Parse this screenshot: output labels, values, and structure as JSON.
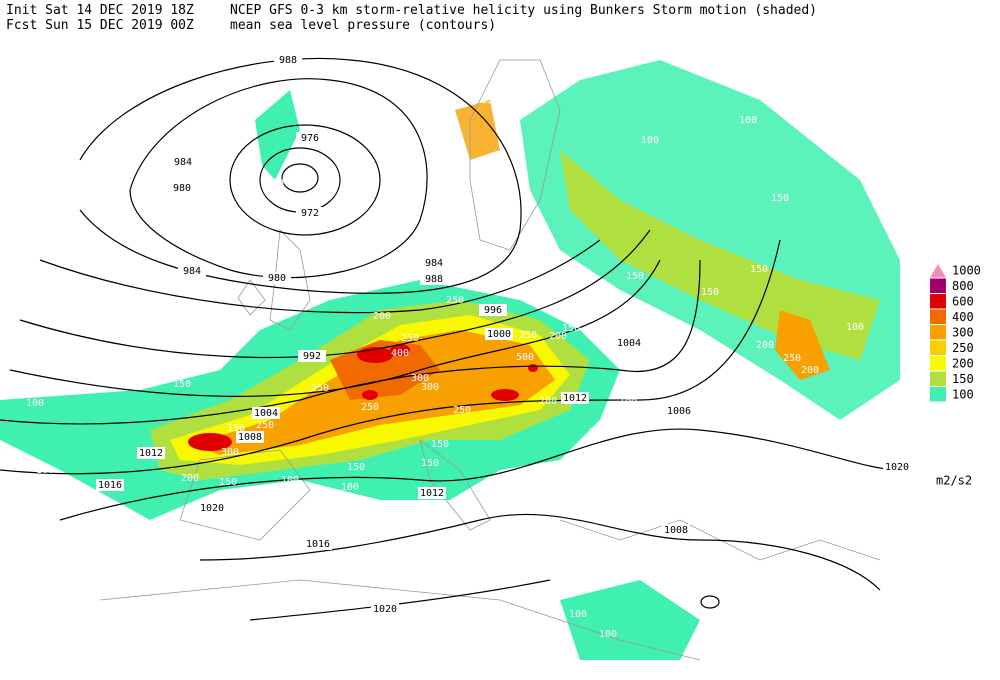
{
  "header": {
    "init": "Init  Sat 14 DEC 2019 18Z",
    "fcst": "Fcst Sun 15 DEC 2019 00Z",
    "title": "NCEP GFS 0-3 km storm-relative helicity using Bunkers Storm motion (shaded)",
    "subtitle": "mean sea level pressure (contours)"
  },
  "legend": {
    "levels": [
      1000,
      800,
      600,
      400,
      300,
      250,
      200,
      150,
      100
    ],
    "colors": [
      "#f090b8",
      "#a0006a",
      "#e00000",
      "#f06a00",
      "#f8a000",
      "#f8d000",
      "#f8f800",
      "#b0e040",
      "#40f0b0"
    ],
    "unit": "m2/s2"
  },
  "contour_labels": [
    988,
    976,
    984,
    980,
    972,
    984,
    980,
    984,
    988,
    996,
    992,
    1000,
    1004,
    1004,
    1008,
    1012,
    1012,
    1016,
    1012,
    1020,
    1016,
    1008,
    1006,
    1020,
    1020
  ],
  "shade_labels": [
    100,
    150,
    100,
    200,
    100,
    200,
    100,
    100,
    150,
    100,
    150,
    100,
    100,
    150,
    150,
    150,
    200,
    250,
    200,
    100,
    100,
    100,
    250,
    200,
    250,
    400,
    300,
    300,
    250,
    250,
    250,
    500,
    250,
    200,
    150,
    200,
    100,
    200,
    100,
    150,
    150,
    150,
    300,
    150,
    200,
    100,
    100,
    150,
    250,
    100,
    100,
    100
  ]
}
